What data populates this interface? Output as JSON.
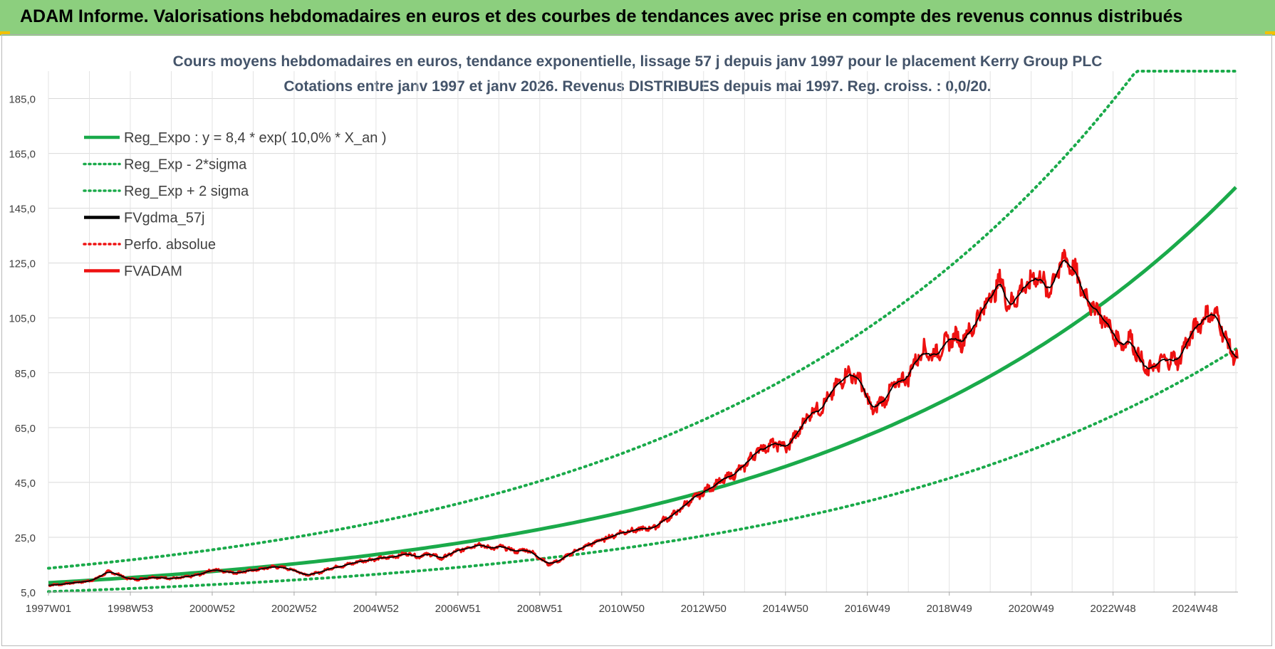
{
  "header": {
    "title": "ADAM Informe. Valorisations hebdomadaires en euros et des courbes de tendances avec prise en compte des revenus connus distribués",
    "background": "#8ccf7e"
  },
  "chart_data": {
    "type": "line",
    "title_line1": "Cours moyens hebdomadaires en euros, tendance exponentielle, lissage 57 j depuis janv 1997 pour le placement Kerry Group PLC",
    "title_line2": "Cotations entre janv 1997 et janv 2026. Revenus DISTRIBUES depuis mai 1997. Reg. croiss. : 0,0/20.",
    "xlabel": "",
    "ylabel": "",
    "x_range": [
      1997.0,
      2026.05
    ],
    "ylim": [
      5,
      195
    ],
    "y_ticks": [
      "5,0",
      "25,0",
      "45,0",
      "65,0",
      "85,0",
      "105,0",
      "125,0",
      "145,0",
      "165,0",
      "185,0"
    ],
    "y_tick_values": [
      5,
      25,
      45,
      65,
      85,
      105,
      125,
      145,
      165,
      185
    ],
    "x_tick_labels": [
      "1997W01",
      "1998W53",
      "2000W52",
      "2002W52",
      "2004W52",
      "2006W51",
      "2008W51",
      "2010W50",
      "2012W50",
      "2014W50",
      "2016W49",
      "2018W49",
      "2020W49",
      "2022W48",
      "2024W48"
    ],
    "x_tick_values": [
      1997.0,
      1999.0,
      2001.0,
      2003.0,
      2005.0,
      2007.0,
      2009.0,
      2011.0,
      2013.0,
      2015.0,
      2017.0,
      2019.0,
      2021.0,
      2023.0,
      2025.0
    ],
    "grid": true,
    "legend_position": "top-left",
    "regression": {
      "a": 8.4,
      "rate": 0.1,
      "band_factor": 1.63,
      "cap": 195
    },
    "series": [
      {
        "name": "Reg_Expo : y = 8,4 * exp( 10,0% *  X_an )",
        "kind": "reg",
        "color": "#1aaa4a",
        "style": "solid"
      },
      {
        "name": "Reg_Exp - 2*sigma",
        "kind": "reg_low",
        "color": "#1aaa4a",
        "style": "dotted"
      },
      {
        "name": "Reg_Exp + 2 sigma",
        "kind": "reg_high",
        "color": "#1aaa4a",
        "style": "dotted"
      },
      {
        "name": "FVgdma_57j",
        "kind": "smooth",
        "color": "#000000",
        "style": "solid"
      },
      {
        "name": "Perfo. absolue",
        "kind": "perfo",
        "color": "#ee1111",
        "style": "dotted"
      },
      {
        "name": "FVADAM",
        "kind": "price",
        "color": "#ee1111",
        "style": "solid"
      }
    ],
    "price_points": [
      [
        1997.0,
        7.5
      ],
      [
        1997.3,
        7.8
      ],
      [
        1997.6,
        8.4
      ],
      [
        1998.0,
        9.0
      ],
      [
        1998.25,
        10.5
      ],
      [
        1998.45,
        12.5
      ],
      [
        1998.7,
        11.5
      ],
      [
        1998.9,
        10.0
      ],
      [
        1999.2,
        9.6
      ],
      [
        1999.5,
        10.4
      ],
      [
        1999.8,
        10.2
      ],
      [
        2000.1,
        10.0
      ],
      [
        2000.4,
        10.6
      ],
      [
        2000.7,
        11.4
      ],
      [
        2001.0,
        13.2
      ],
      [
        2001.3,
        12.6
      ],
      [
        2001.6,
        12.0
      ],
      [
        2001.9,
        12.8
      ],
      [
        2002.2,
        13.4
      ],
      [
        2002.5,
        14.3
      ],
      [
        2002.8,
        13.8
      ],
      [
        2003.1,
        12.5
      ],
      [
        2003.3,
        11.2
      ],
      [
        2003.6,
        12.0
      ],
      [
        2003.9,
        13.8
      ],
      [
        2004.2,
        14.6
      ],
      [
        2004.6,
        16.2
      ],
      [
        2005.0,
        17.1
      ],
      [
        2005.4,
        17.8
      ],
      [
        2005.8,
        19.2
      ],
      [
        2006.0,
        17.8
      ],
      [
        2006.3,
        19.0
      ],
      [
        2006.6,
        17.2
      ],
      [
        2006.9,
        19.5
      ],
      [
        2007.2,
        21.0
      ],
      [
        2007.5,
        22.5
      ],
      [
        2007.8,
        21.0
      ],
      [
        2008.1,
        21.5
      ],
      [
        2008.4,
        19.8
      ],
      [
        2008.7,
        20.5
      ],
      [
        2009.0,
        17.5
      ],
      [
        2009.2,
        15.2
      ],
      [
        2009.5,
        16.5
      ],
      [
        2009.8,
        19.5
      ],
      [
        2010.1,
        21.5
      ],
      [
        2010.4,
        23.5
      ],
      [
        2010.7,
        25.0
      ],
      [
        2011.0,
        26.8
      ],
      [
        2011.3,
        27.5
      ],
      [
        2011.6,
        28.2
      ],
      [
        2011.8,
        28.5
      ],
      [
        2012.0,
        31.0
      ],
      [
        2012.3,
        33.5
      ],
      [
        2012.6,
        37.5
      ],
      [
        2012.9,
        40.5
      ],
      [
        2013.2,
        43.5
      ],
      [
        2013.5,
        46.0
      ],
      [
        2013.8,
        48.5
      ],
      [
        2014.0,
        51.0
      ],
      [
        2014.3,
        56.5
      ],
      [
        2014.6,
        58.5
      ],
      [
        2014.9,
        59.0
      ],
      [
        2015.0,
        57.0
      ],
      [
        2015.3,
        63.0
      ],
      [
        2015.6,
        70.5
      ],
      [
        2015.9,
        72.5
      ],
      [
        2016.2,
        79.0
      ],
      [
        2016.5,
        85.0
      ],
      [
        2016.8,
        83.0
      ],
      [
        2017.0,
        75.5
      ],
      [
        2017.1,
        71.0
      ],
      [
        2017.4,
        75.0
      ],
      [
        2017.7,
        81.0
      ],
      [
        2018.0,
        83.5
      ],
      [
        2018.2,
        90.5
      ],
      [
        2018.4,
        93.5
      ],
      [
        2018.6,
        91.0
      ],
      [
        2018.8,
        94.0
      ],
      [
        2019.1,
        98.0
      ],
      [
        2019.3,
        96.5
      ],
      [
        2019.6,
        102.0
      ],
      [
        2019.9,
        110.5
      ],
      [
        2020.1,
        115.0
      ],
      [
        2020.3,
        119.0
      ],
      [
        2020.45,
        108.0
      ],
      [
        2020.6,
        112.5
      ],
      [
        2020.9,
        117.0
      ],
      [
        2021.2,
        121.0
      ],
      [
        2021.4,
        114.0
      ],
      [
        2021.6,
        120.5
      ],
      [
        2021.8,
        127.0
      ],
      [
        2022.0,
        124.0
      ],
      [
        2022.2,
        117.0
      ],
      [
        2022.4,
        111.0
      ],
      [
        2022.6,
        108.0
      ],
      [
        2022.8,
        104.0
      ],
      [
        2023.0,
        99.5
      ],
      [
        2023.2,
        95.0
      ],
      [
        2023.4,
        98.0
      ],
      [
        2023.6,
        92.0
      ],
      [
        2023.8,
        85.5
      ],
      [
        2024.0,
        87.0
      ],
      [
        2024.3,
        90.0
      ],
      [
        2024.6,
        89.5
      ],
      [
        2024.8,
        96.0
      ],
      [
        2025.1,
        103.5
      ],
      [
        2025.4,
        107.0
      ],
      [
        2025.6,
        104.0
      ],
      [
        2025.8,
        95.0
      ],
      [
        2026.05,
        89.5
      ]
    ]
  }
}
